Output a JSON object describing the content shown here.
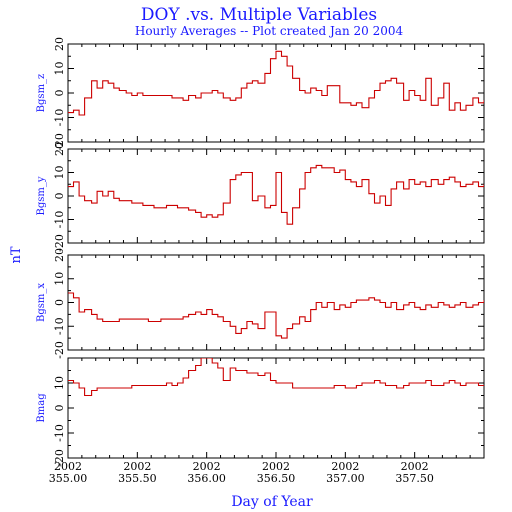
{
  "chart_data": [
    {
      "type": "line",
      "step": true,
      "ylabel": "Bgsm_z",
      "ylim": [
        -20,
        20
      ],
      "yticks": [
        -20,
        -10,
        0,
        10,
        20
      ],
      "color": "#cc0000",
      "x": [
        355.0,
        355.04,
        355.08,
        355.12,
        355.17,
        355.21,
        355.25,
        355.29,
        355.33,
        355.37,
        355.42,
        355.46,
        355.5,
        355.54,
        355.58,
        355.62,
        355.67,
        355.71,
        355.75,
        355.79,
        355.83,
        355.87,
        355.92,
        355.96,
        356.0,
        356.04,
        356.08,
        356.12,
        356.17,
        356.21,
        356.25,
        356.29,
        356.33,
        356.37,
        356.42,
        356.46,
        356.5,
        356.54,
        356.58,
        356.62,
        356.67,
        356.71,
        356.75,
        356.79,
        356.83,
        356.87,
        356.92,
        356.96,
        357.0,
        357.04,
        357.08,
        357.12,
        357.17,
        357.21,
        357.25,
        357.29,
        357.33,
        357.37,
        357.42,
        357.46,
        357.5,
        357.54,
        357.58,
        357.62,
        357.67,
        357.71,
        357.75,
        357.79,
        357.83,
        357.87,
        357.92,
        357.96,
        358.0
      ],
      "y": [
        -8,
        -7,
        -9,
        -2,
        5,
        2,
        5,
        4,
        2,
        1,
        0,
        -1,
        0,
        -1,
        -1,
        -1,
        -1,
        -1,
        -2,
        -2,
        -3,
        -1,
        -2,
        0,
        0,
        1,
        0,
        -2,
        -3,
        -2,
        2,
        4,
        5,
        4,
        8,
        14,
        17,
        15,
        11,
        6,
        1,
        0,
        2,
        1,
        -1,
        3,
        3,
        -4,
        -4,
        -5,
        -4,
        -6,
        -2,
        1,
        4,
        5,
        6,
        4,
        -3,
        1,
        -1,
        -3,
        6,
        -5,
        -2,
        4,
        -7,
        -4,
        -7,
        -5,
        -2,
        -4,
        -3
      ]
    },
    {
      "type": "line",
      "step": true,
      "ylabel": "Bgsm_y",
      "ylim": [
        -20,
        20
      ],
      "yticks": [
        -20,
        -10,
        0,
        10,
        20
      ],
      "color": "#cc0000",
      "x": [
        355.0,
        355.04,
        355.08,
        355.12,
        355.17,
        355.21,
        355.25,
        355.29,
        355.33,
        355.37,
        355.42,
        355.46,
        355.5,
        355.54,
        355.58,
        355.62,
        355.67,
        355.71,
        355.75,
        355.79,
        355.83,
        355.87,
        355.92,
        355.96,
        356.0,
        356.04,
        356.08,
        356.12,
        356.17,
        356.21,
        356.25,
        356.29,
        356.33,
        356.37,
        356.42,
        356.46,
        356.5,
        356.54,
        356.58,
        356.62,
        356.67,
        356.71,
        356.75,
        356.79,
        356.83,
        356.87,
        356.92,
        356.96,
        357.0,
        357.04,
        357.08,
        357.12,
        357.17,
        357.21,
        357.25,
        357.29,
        357.33,
        357.37,
        357.42,
        357.46,
        357.5,
        357.54,
        357.58,
        357.62,
        357.67,
        357.71,
        357.75,
        357.79,
        357.83,
        357.87,
        357.92,
        357.96,
        358.0
      ],
      "y": [
        4,
        6,
        0,
        -2,
        -3,
        2,
        0,
        2,
        -1,
        -2,
        -2,
        -3,
        -3,
        -4,
        -4,
        -5,
        -5,
        -4,
        -4,
        -5,
        -5,
        -6,
        -7,
        -9,
        -8,
        -9,
        -8,
        -3,
        7,
        9,
        10,
        10,
        -2,
        0,
        -5,
        -4,
        10,
        -7,
        -12,
        -5,
        3,
        10,
        12,
        13,
        12,
        12,
        10,
        11,
        7,
        6,
        4,
        7,
        1,
        -3,
        0,
        -4,
        3,
        6,
        3,
        7,
        5,
        6,
        4,
        7,
        5,
        7,
        8,
        6,
        4,
        5,
        6,
        4,
        5
      ]
    },
    {
      "type": "line",
      "step": true,
      "ylabel": "Bgsm_x",
      "ylim": [
        -20,
        20
      ],
      "yticks": [
        -20,
        -10,
        0,
        10,
        20
      ],
      "color": "#cc0000",
      "x": [
        355.0,
        355.04,
        355.08,
        355.12,
        355.17,
        355.21,
        355.25,
        355.29,
        355.33,
        355.37,
        355.42,
        355.46,
        355.5,
        355.54,
        355.58,
        355.62,
        355.67,
        355.71,
        355.75,
        355.79,
        355.83,
        355.87,
        355.92,
        355.96,
        356.0,
        356.04,
        356.08,
        356.12,
        356.17,
        356.21,
        356.25,
        356.29,
        356.33,
        356.37,
        356.42,
        356.46,
        356.5,
        356.54,
        356.58,
        356.62,
        356.67,
        356.71,
        356.75,
        356.79,
        356.83,
        356.87,
        356.92,
        356.96,
        357.0,
        357.04,
        357.08,
        357.12,
        357.17,
        357.21,
        357.25,
        357.29,
        357.33,
        357.37,
        357.42,
        357.46,
        357.5,
        357.54,
        357.58,
        357.62,
        357.67,
        357.71,
        357.75,
        357.79,
        357.83,
        357.87,
        357.92,
        357.96,
        358.0
      ],
      "y": [
        4,
        2,
        -4,
        -3,
        -5,
        -7,
        -8,
        -8,
        -8,
        -7,
        -7,
        -7,
        -7,
        -7,
        -8,
        -8,
        -7,
        -7,
        -7,
        -7,
        -6,
        -5,
        -4,
        -5,
        -3,
        -5,
        -6,
        -8,
        -10,
        -13,
        -11,
        -8,
        -9,
        -11,
        -4,
        -4,
        -14,
        -15,
        -11,
        -9,
        -6,
        -8,
        -3,
        0,
        -2,
        0,
        -3,
        -1,
        -2,
        0,
        1,
        1,
        2,
        1,
        0,
        -2,
        0,
        -3,
        -1,
        0,
        -2,
        -3,
        -1,
        -2,
        0,
        -1,
        -2,
        -1,
        0,
        -2,
        -1,
        0,
        1
      ]
    },
    {
      "type": "line",
      "step": true,
      "ylabel": "Bmag",
      "ylim": [
        -20,
        20
      ],
      "yticks": [
        -20,
        -10,
        0,
        10
      ],
      "color": "#cc0000",
      "x": [
        355.0,
        355.04,
        355.08,
        355.12,
        355.17,
        355.21,
        355.25,
        355.29,
        355.33,
        355.37,
        355.42,
        355.46,
        355.5,
        355.54,
        355.58,
        355.62,
        355.67,
        355.71,
        355.75,
        355.79,
        355.83,
        355.87,
        355.92,
        355.96,
        356.0,
        356.04,
        356.08,
        356.12,
        356.17,
        356.21,
        356.25,
        356.29,
        356.33,
        356.37,
        356.42,
        356.46,
        356.5,
        356.54,
        356.58,
        356.62,
        356.67,
        356.71,
        356.75,
        356.79,
        356.83,
        356.87,
        356.92,
        356.96,
        357.0,
        357.04,
        357.08,
        357.12,
        357.17,
        357.21,
        357.25,
        357.29,
        357.33,
        357.37,
        357.42,
        357.46,
        357.5,
        357.54,
        357.58,
        357.62,
        357.67,
        357.71,
        357.75,
        357.79,
        357.83,
        357.87,
        357.92,
        357.96,
        358.0
      ],
      "y": [
        11,
        10,
        8,
        5,
        7,
        8,
        8,
        8,
        8,
        8,
        8,
        9,
        9,
        9,
        9,
        9,
        9,
        10,
        9,
        10,
        12,
        15,
        17,
        20,
        20,
        18,
        16,
        11,
        16,
        15,
        15,
        14,
        14,
        13,
        14,
        11,
        10,
        10,
        10,
        8,
        8,
        8,
        8,
        8,
        8,
        8,
        9,
        9,
        8,
        8,
        9,
        10,
        10,
        11,
        10,
        9,
        9,
        8,
        9,
        10,
        10,
        10,
        11,
        9,
        9,
        10,
        11,
        10,
        9,
        10,
        10,
        9,
        9
      ]
    }
  ],
  "title": "DOY .vs. Multiple Variables",
  "subtitle": "Hourly Averages -- Plot created Jan 20 2004",
  "unit_label": "nT",
  "xlabel": "Day of Year",
  "xlim": [
    355.0,
    358.0
  ],
  "x_ticks": [
    {
      "value": 355.0,
      "year": "2002",
      "day": "355.00"
    },
    {
      "value": 355.5,
      "year": "2002",
      "day": "355.50"
    },
    {
      "value": 356.0,
      "year": "2002",
      "day": "356.00"
    },
    {
      "value": 356.5,
      "year": "2002",
      "day": "356.50"
    },
    {
      "value": 357.0,
      "year": "2002",
      "day": "357.00"
    },
    {
      "value": 357.5,
      "year": "2002",
      "day": "357.50"
    }
  ]
}
